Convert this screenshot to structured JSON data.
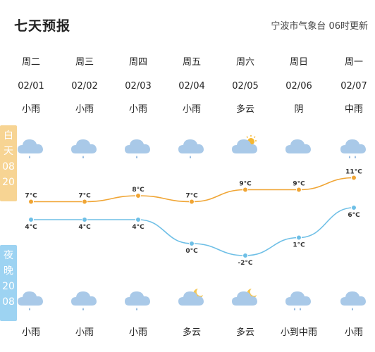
{
  "header": {
    "title": "七天预报",
    "source": "宁波市气象台  06时更新"
  },
  "day_band": {
    "chars": [
      "白",
      "天",
      "08",
      "20"
    ]
  },
  "night_band": {
    "chars": [
      "夜",
      "晚",
      "20",
      "08"
    ]
  },
  "days": [
    {
      "weekday": "周二",
      "date": "02/01",
      "day_weather": "小雨",
      "day_icon": "rain-light-icon",
      "night_weather": "小雨",
      "night_icon": "rain-light-icon"
    },
    {
      "weekday": "周三",
      "date": "02/02",
      "day_weather": "小雨",
      "day_icon": "rain-light-icon",
      "night_weather": "小雨",
      "night_icon": "rain-light-icon"
    },
    {
      "weekday": "周四",
      "date": "02/03",
      "day_weather": "小雨",
      "day_icon": "rain-light-icon",
      "night_weather": "小雨",
      "night_icon": "rain-light-icon"
    },
    {
      "weekday": "周五",
      "date": "02/04",
      "day_weather": "小雨",
      "day_icon": "rain-light-icon",
      "night_weather": "多云",
      "night_icon": "cloudy-night-icon"
    },
    {
      "weekday": "周六",
      "date": "02/05",
      "day_weather": "多云",
      "day_icon": "cloudy-day-icon",
      "night_weather": "多云",
      "night_icon": "cloudy-night-icon"
    },
    {
      "weekday": "周日",
      "date": "02/06",
      "day_weather": "阴",
      "day_icon": "overcast-icon",
      "night_weather": "小到中雨",
      "night_icon": "rain-moderate-icon"
    },
    {
      "weekday": "周一",
      "date": "02/07",
      "day_weather": "中雨",
      "day_icon": "rain-moderate-icon",
      "night_weather": "小雨",
      "night_icon": "rain-light-icon"
    }
  ],
  "chart_data": {
    "type": "line",
    "categories": [
      "02/01",
      "02/02",
      "02/03",
      "02/04",
      "02/05",
      "02/06",
      "02/07"
    ],
    "series": [
      {
        "values": [
          7,
          7,
          8,
          7,
          9,
          9,
          11
        ],
        "labels": [
          "7°C",
          "7°C",
          "8°C",
          "7°C",
          "9°C",
          "9°C",
          "11°C"
        ],
        "color": "#f0a534"
      },
      {
        "values": [
          4,
          4,
          4,
          0,
          -2,
          1,
          6
        ],
        "labels": [
          "4°C",
          "4°C",
          "4°C",
          "0°C",
          "-2°C",
          "1°C",
          "6°C"
        ],
        "color": "#6ebfe6"
      }
    ]
  },
  "colors": {
    "day_band": "#f7d493",
    "night_band": "#9dd3f2",
    "cloud": "#a9c9e8",
    "rain": "#8ab3dc",
    "sun": "#f5b731",
    "moon": "#f3c654"
  }
}
